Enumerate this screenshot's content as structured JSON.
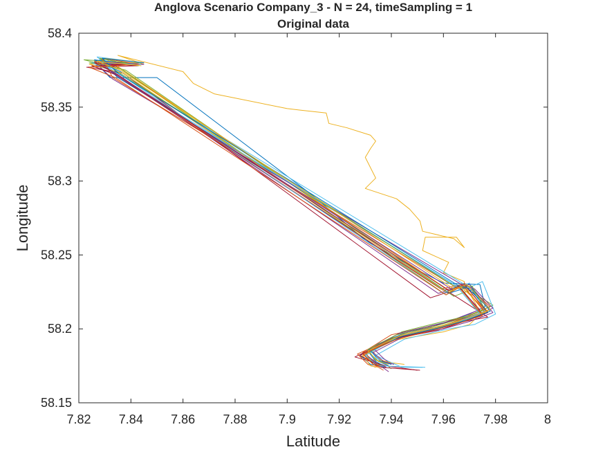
{
  "chart_data": {
    "type": "line",
    "title": "Anglova Scenario Company_3 - N = 24, timeSampling = 1",
    "subtitle": "Original data",
    "xlabel": "Latitude",
    "ylabel": "Longitude",
    "xlim": [
      7.82,
      8.0
    ],
    "ylim": [
      58.15,
      58.4
    ],
    "xticks": [
      7.82,
      7.84,
      7.86,
      7.88,
      7.9,
      7.92,
      7.94,
      7.96,
      7.98,
      8.0
    ],
    "xtick_labels": [
      "7.82",
      "7.84",
      "7.86",
      "7.88",
      "7.9",
      "7.92",
      "7.94",
      "7.96",
      "7.98",
      "8"
    ],
    "yticks": [
      58.15,
      58.2,
      58.25,
      58.3,
      58.35,
      58.4
    ],
    "ytick_labels": [
      "58.15",
      "58.2",
      "58.25",
      "58.3",
      "58.35",
      "58.4"
    ],
    "grid": false,
    "legend": "none",
    "colors": [
      "#0072BD",
      "#D95319",
      "#EDB120",
      "#7E2F8E",
      "#77AC30",
      "#4DBEEE",
      "#A2142F"
    ],
    "series_count": 24,
    "series": [
      {
        "color": "#EDB120",
        "x": [
          7.845,
          7.84,
          7.835,
          7.86,
          7.864,
          7.872,
          7.9,
          7.905,
          7.915,
          7.916,
          7.923,
          7.932,
          7.934,
          7.932,
          7.93,
          7.934,
          7.93,
          7.942,
          7.947,
          7.951,
          7.952,
          7.964,
          7.968,
          7.965,
          7.953,
          7.952,
          7.962,
          7.96,
          7.968,
          7.968,
          7.972,
          7.975,
          7.973,
          7.97,
          7.96,
          7.94,
          7.935,
          7.932,
          7.928,
          7.936,
          7.945
        ],
        "y": [
          58.379,
          58.382,
          58.385,
          58.374,
          58.366,
          58.359,
          58.349,
          58.348,
          58.346,
          58.339,
          58.336,
          58.331,
          58.327,
          58.322,
          58.316,
          58.302,
          58.295,
          58.288,
          58.281,
          58.273,
          58.266,
          58.261,
          58.255,
          58.262,
          58.262,
          58.253,
          58.245,
          58.238,
          58.232,
          58.226,
          58.222,
          58.214,
          58.208,
          58.203,
          58.198,
          58.192,
          58.187,
          58.184,
          58.181,
          58.178,
          58.176
        ]
      },
      {
        "color": "#0072BD",
        "x": [
          7.842,
          7.826,
          7.832,
          7.85,
          7.88,
          7.91,
          7.93,
          7.95,
          7.96,
          7.974,
          7.976,
          7.97,
          7.962,
          7.955,
          7.945,
          7.935,
          7.928,
          7.932,
          7.938
        ],
        "y": [
          58.379,
          58.381,
          58.37,
          58.37,
          58.33,
          58.29,
          58.26,
          58.24,
          58.231,
          58.23,
          58.215,
          58.21,
          58.205,
          58.202,
          58.197,
          58.19,
          58.182,
          58.176,
          58.174
        ]
      },
      {
        "color": "#D95319",
        "x": [
          7.843,
          7.828,
          7.836,
          7.962,
          7.968,
          7.978,
          7.968,
          7.958,
          7.94,
          7.929,
          7.933,
          7.937
        ],
        "y": [
          58.378,
          58.383,
          58.376,
          58.226,
          58.231,
          58.215,
          58.208,
          58.203,
          58.196,
          58.184,
          58.176,
          58.172
        ]
      },
      {
        "color": "#7E2F8E",
        "x": [
          7.844,
          7.825,
          7.835,
          7.958,
          7.966,
          7.974,
          7.965,
          7.955,
          7.942,
          7.93,
          7.935,
          7.939
        ],
        "y": [
          58.379,
          58.378,
          58.372,
          58.224,
          58.228,
          58.213,
          58.207,
          58.201,
          58.196,
          58.183,
          58.176,
          58.171
        ]
      },
      {
        "color": "#77AC30",
        "x": [
          7.842,
          7.822,
          7.838,
          7.964,
          7.97,
          7.979,
          7.97,
          7.96,
          7.944,
          7.932,
          7.936,
          7.94
        ],
        "y": [
          58.38,
          58.382,
          58.375,
          58.222,
          58.226,
          58.216,
          58.209,
          58.205,
          58.198,
          58.186,
          58.179,
          58.173
        ]
      },
      {
        "color": "#4DBEEE",
        "x": [
          7.845,
          7.827,
          7.833,
          7.97,
          7.975,
          7.98,
          7.972,
          7.962,
          7.945,
          7.934,
          7.944,
          7.952
        ],
        "y": [
          58.38,
          58.384,
          58.375,
          58.228,
          58.232,
          58.21,
          58.203,
          58.2,
          58.193,
          58.182,
          58.174,
          58.174
        ]
      },
      {
        "color": "#A2142F",
        "x": [
          7.843,
          7.823,
          7.837,
          7.955,
          7.962,
          7.977,
          7.968,
          7.958,
          7.94,
          7.926,
          7.938,
          7.95
        ],
        "y": [
          58.378,
          58.377,
          58.373,
          58.221,
          58.225,
          58.208,
          58.205,
          58.199,
          58.193,
          58.181,
          58.175,
          58.172
        ]
      },
      {
        "color": "#0072BD",
        "x": [
          7.844,
          7.829,
          7.835,
          7.965,
          7.971,
          7.977,
          7.968,
          7.958,
          7.944,
          7.931,
          7.934,
          7.937
        ],
        "y": [
          58.379,
          58.38,
          58.37,
          58.229,
          58.226,
          58.211,
          58.205,
          58.201,
          58.195,
          58.185,
          58.178,
          58.175
        ]
      },
      {
        "color": "#D95319",
        "x": [
          7.842,
          7.826,
          7.834,
          7.959,
          7.967,
          7.976,
          7.966,
          7.956,
          7.941,
          7.927,
          7.931,
          7.934
        ],
        "y": [
          58.378,
          58.381,
          58.373,
          58.227,
          58.23,
          58.212,
          58.206,
          58.2,
          58.194,
          58.183,
          58.176,
          58.174
        ]
      },
      {
        "color": "#EDB120",
        "x": [
          7.845,
          7.83,
          7.838,
          7.963,
          7.968,
          7.975,
          7.966,
          7.956,
          7.942,
          7.929,
          7.932,
          7.935
        ],
        "y": [
          58.38,
          58.383,
          58.374,
          58.225,
          58.23,
          58.209,
          58.204,
          58.199,
          58.193,
          58.182,
          58.175,
          58.174
        ]
      },
      {
        "color": "#7E2F8E",
        "x": [
          7.843,
          7.827,
          7.833,
          7.967,
          7.972,
          7.979,
          7.97,
          7.96,
          7.943,
          7.933,
          7.937,
          7.94
        ],
        "y": [
          58.379,
          58.379,
          58.369,
          58.23,
          58.227,
          58.214,
          58.208,
          58.204,
          58.197,
          58.187,
          58.18,
          58.176
        ]
      },
      {
        "color": "#77AC30",
        "x": [
          7.844,
          7.824,
          7.836,
          7.961,
          7.966,
          7.974,
          7.965,
          7.955,
          7.941,
          7.93,
          7.933,
          7.936
        ],
        "y": [
          58.38,
          58.38,
          58.376,
          58.223,
          58.229,
          58.21,
          58.204,
          58.199,
          58.194,
          58.184,
          58.176,
          58.175
        ]
      },
      {
        "color": "#4DBEEE",
        "x": [
          7.842,
          7.828,
          7.835,
          7.966,
          7.97,
          7.976,
          7.967,
          7.957,
          7.943,
          7.932,
          7.935,
          7.938
        ],
        "y": [
          58.378,
          58.382,
          58.371,
          58.228,
          58.231,
          58.212,
          58.206,
          58.201,
          58.195,
          58.186,
          58.178,
          58.176
        ]
      },
      {
        "color": "#A2142F",
        "x": [
          7.845,
          7.825,
          7.834,
          7.96,
          7.966,
          7.975,
          7.966,
          7.956,
          7.942,
          7.929,
          7.934,
          7.938
        ],
        "y": [
          58.379,
          58.378,
          58.372,
          58.226,
          58.229,
          58.21,
          58.205,
          58.2,
          58.194,
          58.183,
          58.177,
          58.174
        ]
      },
      {
        "color": "#0072BD",
        "x": [
          7.843,
          7.826,
          7.836,
          7.962,
          7.969,
          7.978,
          7.969,
          7.959,
          7.944,
          7.931,
          7.935,
          7.939
        ],
        "y": [
          58.378,
          58.382,
          58.374,
          58.224,
          58.228,
          58.213,
          58.207,
          58.202,
          58.196,
          58.185,
          58.178,
          58.175
        ]
      },
      {
        "color": "#D95319",
        "x": [
          7.844,
          7.829,
          7.833,
          7.964,
          7.968,
          7.976,
          7.967,
          7.957,
          7.943,
          7.93,
          7.933,
          7.937
        ],
        "y": [
          58.379,
          58.383,
          58.37,
          58.229,
          58.228,
          58.211,
          58.205,
          58.2,
          58.195,
          58.184,
          58.177,
          58.175
        ]
      },
      {
        "color": "#EDB120",
        "x": [
          7.842,
          7.824,
          7.837,
          7.961,
          7.967,
          7.977,
          7.968,
          7.958,
          7.943,
          7.932,
          7.936,
          7.94
        ],
        "y": [
          58.38,
          58.379,
          58.373,
          58.225,
          58.228,
          58.212,
          58.206,
          58.201,
          58.195,
          58.186,
          58.179,
          58.177
        ]
      },
      {
        "color": "#7E2F8E",
        "x": [
          7.845,
          7.827,
          7.835,
          7.963,
          7.97,
          7.979,
          7.97,
          7.96,
          7.945,
          7.933,
          7.937,
          7.941
        ],
        "y": [
          58.379,
          58.381,
          58.371,
          58.227,
          58.23,
          58.211,
          58.205,
          58.2,
          58.195,
          58.184,
          58.178,
          58.176
        ]
      },
      {
        "color": "#77AC30",
        "x": [
          7.843,
          7.828,
          7.834,
          7.965,
          7.971,
          7.976,
          7.967,
          7.957,
          7.942,
          7.931,
          7.934,
          7.938
        ],
        "y": [
          58.378,
          58.383,
          58.375,
          58.228,
          58.229,
          58.213,
          58.207,
          58.202,
          58.196,
          58.186,
          58.179,
          58.177
        ]
      },
      {
        "color": "#4DBEEE",
        "x": [
          7.844,
          7.825,
          7.836,
          7.96,
          7.965,
          7.974,
          7.965,
          7.955,
          7.941,
          7.93,
          7.935,
          7.953
        ],
        "y": [
          58.379,
          58.38,
          58.372,
          58.224,
          58.229,
          58.21,
          58.204,
          58.199,
          58.193,
          58.182,
          58.175,
          58.174
        ]
      },
      {
        "color": "#A2142F",
        "x": [
          7.842,
          7.826,
          7.833,
          7.962,
          7.968,
          7.977,
          7.968,
          7.958,
          7.943,
          7.928,
          7.936,
          7.951
        ],
        "y": [
          58.378,
          58.38,
          58.374,
          58.226,
          58.23,
          58.211,
          58.205,
          58.2,
          58.194,
          58.182,
          58.174,
          58.172
        ]
      },
      {
        "color": "#0072BD",
        "x": [
          7.845,
          7.829,
          7.835,
          7.966,
          7.971,
          7.978,
          7.969,
          7.959,
          7.944,
          7.932,
          7.936,
          7.94
        ],
        "y": [
          58.38,
          58.383,
          58.373,
          58.229,
          58.227,
          58.212,
          58.206,
          58.201,
          58.195,
          58.185,
          58.178,
          58.176
        ]
      },
      {
        "color": "#D95319",
        "x": [
          7.843,
          7.824,
          7.834,
          7.961,
          7.966,
          7.975,
          7.966,
          7.956,
          7.942,
          7.929,
          7.933,
          7.936
        ],
        "y": [
          58.379,
          58.377,
          58.37,
          58.223,
          58.228,
          58.209,
          58.204,
          58.199,
          58.193,
          58.183,
          58.176,
          58.174
        ]
      },
      {
        "color": "#EDB120",
        "x": [
          7.844,
          7.827,
          7.836,
          7.964,
          7.969,
          7.978,
          7.969,
          7.959,
          7.944,
          7.931,
          7.935,
          7.939
        ],
        "y": [
          58.378,
          58.381,
          58.375,
          58.227,
          58.23,
          58.213,
          58.207,
          58.202,
          58.196,
          58.185,
          58.178,
          58.176
        ]
      }
    ]
  }
}
